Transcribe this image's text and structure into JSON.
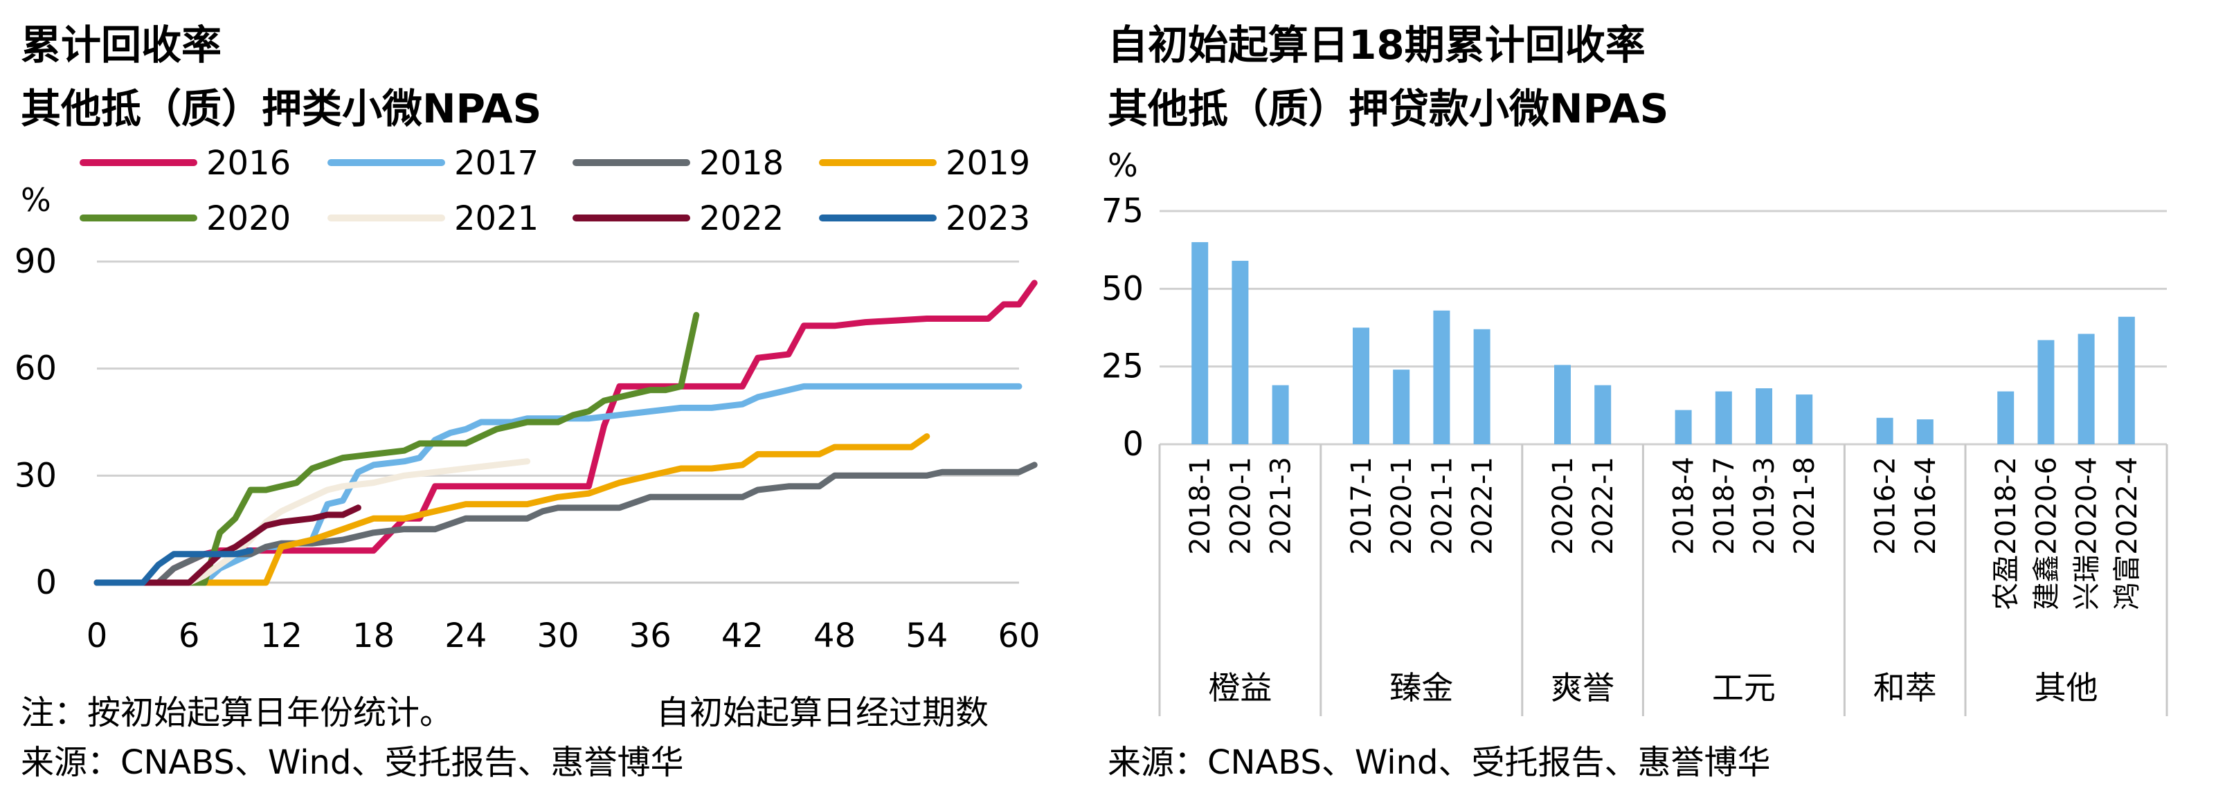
{
  "chart_data": [
    {
      "type": "line",
      "title": "累计回收率",
      "subtitle": "其他抵（质）押类小微NPAS",
      "ylabel": "%",
      "xlabel": "自初始起算日经过期数",
      "xlim": [
        0,
        60
      ],
      "ylim": [
        0,
        90
      ],
      "xticks": [
        0,
        6,
        12,
        18,
        24,
        30,
        36,
        42,
        48,
        54,
        60
      ],
      "yticks": [
        0,
        30,
        60,
        90
      ],
      "grid": true,
      "legend_position": "top",
      "note": "注：按初始起算日年份统计。",
      "source": "来源：CNABS、Wind、受托报告、惠誉博华",
      "series": [
        {
          "name": "2016",
          "color": "#d0135a",
          "points": [
            [
              0,
              0
            ],
            [
              4,
              0
            ],
            [
              5,
              4
            ],
            [
              6,
              6
            ],
            [
              7,
              8
            ],
            [
              8,
              9
            ],
            [
              10,
              9
            ],
            [
              11,
              9
            ],
            [
              12,
              9
            ],
            [
              13,
              9
            ],
            [
              14,
              9
            ],
            [
              15,
              9
            ],
            [
              18,
              9
            ],
            [
              20,
              18
            ],
            [
              21,
              18
            ],
            [
              22,
              27
            ],
            [
              24,
              27
            ],
            [
              26,
              27
            ],
            [
              28,
              27
            ],
            [
              30,
              27
            ],
            [
              32,
              27
            ],
            [
              33,
              44
            ],
            [
              34,
              55
            ],
            [
              36,
              55
            ],
            [
              38,
              55
            ],
            [
              40,
              55
            ],
            [
              42,
              55
            ],
            [
              43,
              63
            ],
            [
              45,
              64
            ],
            [
              46,
              72
            ],
            [
              48,
              72
            ],
            [
              50,
              73
            ],
            [
              52,
              73.5
            ],
            [
              54,
              74
            ],
            [
              56,
              74
            ],
            [
              58,
              74
            ],
            [
              59,
              78
            ],
            [
              60,
              78
            ],
            [
              61,
              84
            ]
          ]
        },
        {
          "name": "2017",
          "color": "#6bb3e6",
          "points": [
            [
              0,
              0
            ],
            [
              7,
              0
            ],
            [
              8,
              4
            ],
            [
              9,
              6
            ],
            [
              10,
              8
            ],
            [
              11,
              10
            ],
            [
              12,
              10
            ],
            [
              14,
              12
            ],
            [
              15,
              22
            ],
            [
              16,
              23
            ],
            [
              17,
              31
            ],
            [
              18,
              33
            ],
            [
              20,
              34
            ],
            [
              21,
              35
            ],
            [
              22,
              40
            ],
            [
              23,
              42
            ],
            [
              24,
              43
            ],
            [
              25,
              45
            ],
            [
              27,
              45
            ],
            [
              28,
              46
            ],
            [
              30,
              46
            ],
            [
              32,
              46
            ],
            [
              34,
              47
            ],
            [
              36,
              48
            ],
            [
              38,
              49
            ],
            [
              40,
              49
            ],
            [
              42,
              50
            ],
            [
              43,
              52
            ],
            [
              45,
              54
            ],
            [
              46,
              55
            ],
            [
              48,
              55
            ],
            [
              50,
              55
            ],
            [
              52,
              55
            ],
            [
              54,
              55
            ],
            [
              56,
              55
            ],
            [
              58,
              55
            ],
            [
              60,
              55
            ]
          ]
        },
        {
          "name": "2018",
          "color": "#646b71",
          "points": [
            [
              0,
              0
            ],
            [
              4,
              0
            ],
            [
              5,
              4
            ],
            [
              6,
              6
            ],
            [
              7,
              8
            ],
            [
              8,
              8
            ],
            [
              10,
              8
            ],
            [
              11,
              10
            ],
            [
              12,
              11
            ],
            [
              14,
              11
            ],
            [
              16,
              12
            ],
            [
              18,
              14
            ],
            [
              20,
              15
            ],
            [
              22,
              15
            ],
            [
              24,
              18
            ],
            [
              26,
              18
            ],
            [
              28,
              18
            ],
            [
              29,
              20
            ],
            [
              30,
              21
            ],
            [
              32,
              21
            ],
            [
              34,
              21
            ],
            [
              36,
              24
            ],
            [
              38,
              24
            ],
            [
              40,
              24
            ],
            [
              42,
              24
            ],
            [
              43,
              26
            ],
            [
              45,
              27
            ],
            [
              47,
              27
            ],
            [
              48,
              30
            ],
            [
              50,
              30
            ],
            [
              52,
              30
            ],
            [
              54,
              30
            ],
            [
              55,
              31
            ],
            [
              57,
              31
            ],
            [
              58,
              31
            ],
            [
              60,
              31
            ],
            [
              61,
              33
            ]
          ]
        },
        {
          "name": "2019",
          "color": "#f0a800",
          "points": [
            [
              0,
              0
            ],
            [
              7,
              0
            ],
            [
              8,
              0
            ],
            [
              10,
              0
            ],
            [
              11,
              0
            ],
            [
              12,
              10
            ],
            [
              14,
              12
            ],
            [
              16,
              15
            ],
            [
              18,
              18
            ],
            [
              20,
              18
            ],
            [
              22,
              20
            ],
            [
              24,
              22
            ],
            [
              26,
              22
            ],
            [
              28,
              22
            ],
            [
              30,
              24
            ],
            [
              32,
              25
            ],
            [
              34,
              28
            ],
            [
              36,
              30
            ],
            [
              38,
              32
            ],
            [
              40,
              32
            ],
            [
              42,
              33
            ],
            [
              43,
              36
            ],
            [
              45,
              36
            ],
            [
              47,
              36
            ],
            [
              48,
              38
            ],
            [
              50,
              38
            ],
            [
              52,
              38
            ],
            [
              53,
              38
            ],
            [
              54,
              41
            ]
          ]
        },
        {
          "name": "2020",
          "color": "#5b8c2a",
          "points": [
            [
              0,
              0
            ],
            [
              6,
              0
            ],
            [
              7,
              0
            ],
            [
              8,
              14
            ],
            [
              9,
              18
            ],
            [
              10,
              26
            ],
            [
              11,
              26
            ],
            [
              12,
              27
            ],
            [
              13,
              28
            ],
            [
              14,
              32
            ],
            [
              16,
              35
            ],
            [
              18,
              36
            ],
            [
              20,
              37
            ],
            [
              21,
              39
            ],
            [
              22,
              39
            ],
            [
              23,
              39
            ],
            [
              24,
              39
            ],
            [
              25,
              41
            ],
            [
              26,
              43
            ],
            [
              27,
              44
            ],
            [
              28,
              45
            ],
            [
              30,
              45
            ],
            [
              31,
              47
            ],
            [
              32,
              48
            ],
            [
              33,
              51
            ],
            [
              34,
              52
            ],
            [
              35,
              53
            ],
            [
              36,
              54
            ],
            [
              37,
              54
            ],
            [
              38,
              55
            ],
            [
              39,
              75
            ]
          ]
        },
        {
          "name": "2021",
          "color": "#f3ebdd",
          "points": [
            [
              0,
              0
            ],
            [
              6,
              0
            ],
            [
              7,
              2
            ],
            [
              8,
              5
            ],
            [
              9,
              8
            ],
            [
              10,
              12
            ],
            [
              11,
              17
            ],
            [
              12,
              20
            ],
            [
              13,
              22
            ],
            [
              14,
              24
            ],
            [
              15,
              26
            ],
            [
              16,
              27
            ],
            [
              18,
              28
            ],
            [
              20,
              30
            ],
            [
              22,
              31
            ],
            [
              24,
              32
            ],
            [
              26,
              33
            ],
            [
              28,
              34
            ]
          ]
        },
        {
          "name": "2022",
          "color": "#7c0b2e",
          "points": [
            [
              0,
              0
            ],
            [
              6,
              0
            ],
            [
              7,
              4
            ],
            [
              8,
              8
            ],
            [
              9,
              10
            ],
            [
              10,
              13
            ],
            [
              11,
              16
            ],
            [
              12,
              17
            ],
            [
              14,
              18
            ],
            [
              15,
              19
            ],
            [
              16,
              19
            ],
            [
              17,
              21
            ]
          ]
        },
        {
          "name": "2023",
          "color": "#1f67a6",
          "points": [
            [
              0,
              0
            ],
            [
              3,
              0
            ],
            [
              4,
              5
            ],
            [
              5,
              8
            ],
            [
              6,
              8
            ],
            [
              7,
              8
            ],
            [
              8,
              8
            ],
            [
              9,
              8
            ],
            [
              10,
              9
            ]
          ]
        }
      ]
    },
    {
      "type": "bar",
      "title": "自初始起算日18期累计回收率",
      "subtitle": "其他抵（质）押贷款小微NPAS",
      "ylabel": "%",
      "ylim": [
        0,
        75
      ],
      "yticks": [
        0,
        25,
        50,
        75
      ],
      "grid": true,
      "color": "#6bb3e6",
      "source": "来源：CNABS、Wind、受托报告、惠誉博华",
      "groups": [
        {
          "name": "橙益",
          "bars": [
            {
              "label": "2018-1",
              "value": 65
            },
            {
              "label": "2020-1",
              "value": 59
            },
            {
              "label": "2021-3",
              "value": 19
            }
          ]
        },
        {
          "name": "臻金",
          "bars": [
            {
              "label": "2017-1",
              "value": 37.5
            },
            {
              "label": "2020-1",
              "value": 24
            },
            {
              "label": "2021-1",
              "value": 43
            },
            {
              "label": "2022-1",
              "value": 37
            }
          ]
        },
        {
          "name": "爽誉",
          "bars": [
            {
              "label": "2020-1",
              "value": 25.5
            },
            {
              "label": "2022-1",
              "value": 19
            }
          ]
        },
        {
          "name": "工元",
          "bars": [
            {
              "label": "2018-4",
              "value": 11
            },
            {
              "label": "2018-7",
              "value": 17
            },
            {
              "label": "2019-3",
              "value": 18
            },
            {
              "label": "2021-8",
              "value": 16
            }
          ]
        },
        {
          "name": "和萃",
          "bars": [
            {
              "label": "2016-2",
              "value": 8.5
            },
            {
              "label": "2016-4",
              "value": 8
            }
          ]
        },
        {
          "name": "其他",
          "bars": [
            {
              "label": "农盈2018-2",
              "value": 17
            },
            {
              "label": "建鑫2020-6",
              "value": 33.5
            },
            {
              "label": "兴瑞2020-4",
              "value": 35.5
            },
            {
              "label": "鸿富2022-4",
              "value": 41
            }
          ]
        }
      ]
    }
  ]
}
